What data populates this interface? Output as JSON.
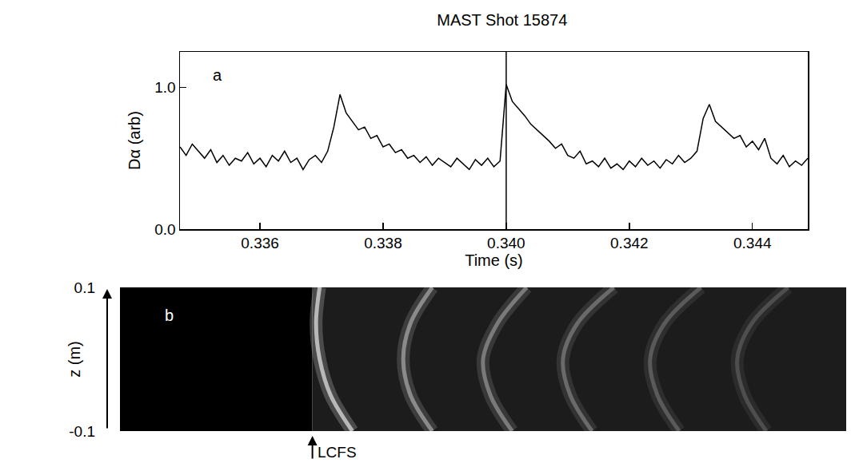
{
  "chart_data": [
    {
      "type": "line",
      "panel": "a",
      "title": "MAST Shot 15874",
      "x_label": "Time (s)",
      "y_label": "Dα (arb)",
      "color": "#000000",
      "grid": false,
      "x": [
        0.3347,
        0.3348,
        0.3349,
        0.335,
        0.3351,
        0.3352,
        0.3353,
        0.3354,
        0.3355,
        0.3356,
        0.3357,
        0.3358,
        0.3359,
        0.336,
        0.3361,
        0.3362,
        0.3363,
        0.3364,
        0.3365,
        0.3366,
        0.3367,
        0.3368,
        0.3369,
        0.337,
        0.3371,
        0.3372,
        0.3373,
        0.3374,
        0.3375,
        0.3376,
        0.3377,
        0.3378,
        0.3379,
        0.338,
        0.3381,
        0.3382,
        0.3383,
        0.3384,
        0.3385,
        0.3386,
        0.3387,
        0.3388,
        0.3389,
        0.339,
        0.3391,
        0.3392,
        0.3393,
        0.3394,
        0.3395,
        0.3396,
        0.3397,
        0.3398,
        0.3399,
        0.34,
        0.3401,
        0.3402,
        0.3403,
        0.3404,
        0.3405,
        0.3406,
        0.3407,
        0.3408,
        0.3409,
        0.341,
        0.3411,
        0.3412,
        0.3413,
        0.3414,
        0.3415,
        0.3416,
        0.3417,
        0.3418,
        0.3419,
        0.342,
        0.3421,
        0.3422,
        0.3423,
        0.3424,
        0.3425,
        0.3426,
        0.3427,
        0.3428,
        0.3429,
        0.343,
        0.3431,
        0.3432,
        0.3433,
        0.3434,
        0.3435,
        0.3436,
        0.3437,
        0.3438,
        0.3439,
        0.344,
        0.3441,
        0.3442,
        0.3443,
        0.3444,
        0.3445,
        0.3446,
        0.3447,
        0.3448,
        0.3449
      ],
      "values": [
        0.58,
        0.52,
        0.6,
        0.55,
        0.5,
        0.56,
        0.47,
        0.52,
        0.45,
        0.5,
        0.48,
        0.54,
        0.46,
        0.5,
        0.44,
        0.52,
        0.48,
        0.55,
        0.47,
        0.5,
        0.42,
        0.49,
        0.52,
        0.47,
        0.55,
        0.72,
        0.95,
        0.82,
        0.76,
        0.7,
        0.72,
        0.64,
        0.66,
        0.58,
        0.6,
        0.54,
        0.56,
        0.5,
        0.52,
        0.47,
        0.51,
        0.45,
        0.5,
        0.47,
        0.44,
        0.5,
        0.46,
        0.42,
        0.49,
        0.45,
        0.5,
        0.44,
        0.48,
        1.02,
        0.9,
        0.85,
        0.8,
        0.74,
        0.7,
        0.66,
        0.62,
        0.57,
        0.6,
        0.52,
        0.5,
        0.55,
        0.46,
        0.48,
        0.44,
        0.5,
        0.43,
        0.46,
        0.42,
        0.48,
        0.44,
        0.5,
        0.45,
        0.48,
        0.43,
        0.49,
        0.46,
        0.52,
        0.47,
        0.5,
        0.55,
        0.78,
        0.88,
        0.76,
        0.72,
        0.68,
        0.64,
        0.66,
        0.58,
        0.62,
        0.56,
        0.64,
        0.5,
        0.46,
        0.52,
        0.44,
        0.48,
        0.45,
        0.5
      ],
      "xlim": [
        0.3347,
        0.3449
      ],
      "xticks": [
        0.336,
        0.338,
        {
          "value": 0.34,
          "label": "0.340"
        },
        0.342,
        0.344
      ],
      "ylim": [
        0,
        1.25
      ],
      "yticks": [
        {
          "value": 0,
          "label": "0.0"
        },
        {
          "value": 1,
          "label": "1.0"
        }
      ],
      "vertical_line": 0.34
    },
    {
      "type": "image",
      "panel": "b",
      "y_label": "z (m)",
      "tick_labels": "y",
      "xlim": [
        0,
        1
      ],
      "xticks": [],
      "ylim": [
        -0.1,
        0.1
      ],
      "yticks": [
        0.1,
        -0.1
      ],
      "annotation": "LCFS",
      "lcfs": 0.265,
      "filament_z": [
        0.1,
        0.05,
        0,
        -0.05,
        -0.1
      ],
      "filaments": [
        {
          "color": "#b8b8b8",
          "values": [
            0.275,
            0.27,
            0.275,
            0.29,
            0.32
          ]
        },
        {
          "color": "#8a8a8a",
          "values": [
            0.43,
            0.4,
            0.39,
            0.4,
            0.43
          ]
        },
        {
          "color": "#7a7a7a",
          "values": [
            0.56,
            0.52,
            0.5,
            0.51,
            0.54
          ]
        },
        {
          "color": "#6a6a6a",
          "values": [
            0.68,
            0.63,
            0.61,
            0.62,
            0.65
          ]
        },
        {
          "color": "#5a5a5a",
          "values": [
            0.8,
            0.75,
            0.73,
            0.74,
            0.77
          ]
        },
        {
          "color": "#4e4e4e",
          "values": [
            0.92,
            0.87,
            0.85,
            0.86,
            0.89
          ]
        }
      ]
    }
  ]
}
